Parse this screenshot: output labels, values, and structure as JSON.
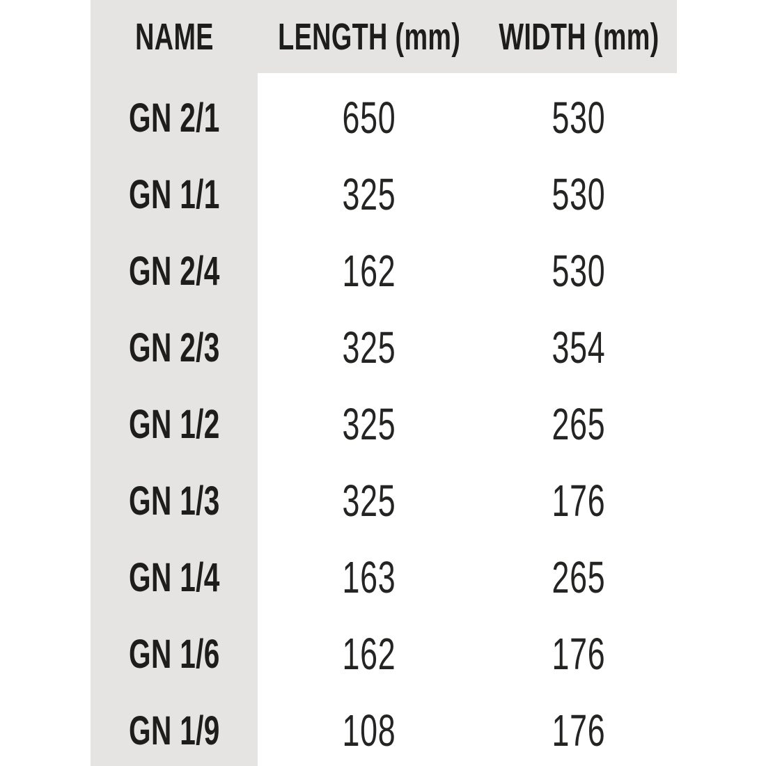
{
  "table": {
    "columns": [
      "NAME",
      "LENGTH (mm)",
      "WIDTH (mm)"
    ],
    "rows": [
      {
        "name": "GN 2/1",
        "length": "650",
        "width": "530"
      },
      {
        "name": "GN 1/1",
        "length": "325",
        "width": "530"
      },
      {
        "name": "GN 2/4",
        "length": "162",
        "width": "530"
      },
      {
        "name": "GN 2/3",
        "length": "325",
        "width": "354"
      },
      {
        "name": "GN 1/2",
        "length": "325",
        "width": "265"
      },
      {
        "name": "GN 1/3",
        "length": "325",
        "width": "176"
      },
      {
        "name": "GN 1/4",
        "length": "163",
        "width": "265"
      },
      {
        "name": "GN 1/6",
        "length": "162",
        "width": "176"
      },
      {
        "name": "GN 1/9",
        "length": "108",
        "width": "176"
      }
    ]
  },
  "chart_data": {
    "type": "table",
    "columns": [
      "NAME",
      "LENGTH (mm)",
      "WIDTH (mm)"
    ],
    "rows": [
      [
        "GN 2/1",
        650,
        530
      ],
      [
        "GN 1/1",
        325,
        530
      ],
      [
        "GN 2/4",
        162,
        530
      ],
      [
        "GN 2/3",
        325,
        354
      ],
      [
        "GN 1/2",
        325,
        265
      ],
      [
        "GN 1/3",
        325,
        176
      ],
      [
        "GN 1/4",
        163,
        265
      ],
      [
        "GN 1/6",
        162,
        176
      ],
      [
        "GN 1/9",
        108,
        176
      ]
    ]
  },
  "colors": {
    "band_bg": "#e5e4e2",
    "text": "#1d1d1b",
    "page_bg": "#ffffff"
  }
}
